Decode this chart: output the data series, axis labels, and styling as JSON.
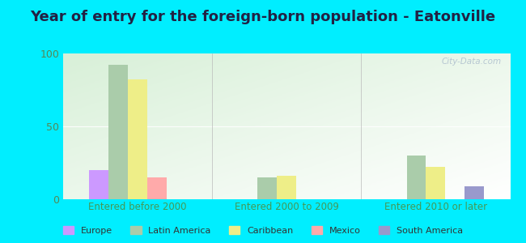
{
  "title": "Year of entry for the foreign-born population - Eatonville",
  "groups": [
    "Entered before 2000",
    "Entered 2000 to 2009",
    "Entered 2010 or later"
  ],
  "series": [
    "Europe",
    "Latin America",
    "Caribbean",
    "Mexico",
    "South America"
  ],
  "colors": [
    "#cc99ff",
    "#aaccaa",
    "#eeee88",
    "#ffaaaa",
    "#9999cc"
  ],
  "values": {
    "Entered before 2000": [
      20,
      92,
      82,
      15,
      0
    ],
    "Entered 2000 to 2009": [
      0,
      15,
      16,
      0,
      0
    ],
    "Entered 2010 or later": [
      0,
      30,
      22,
      0,
      9
    ]
  },
  "ylim": [
    0,
    100
  ],
  "yticks": [
    0,
    50,
    100
  ],
  "outer_bg": "#00eeff",
  "title_fontsize": 13,
  "title_color": "#222244",
  "axis_label_color": "#449955",
  "tick_color": "#558855",
  "watermark": "City-Data.com"
}
